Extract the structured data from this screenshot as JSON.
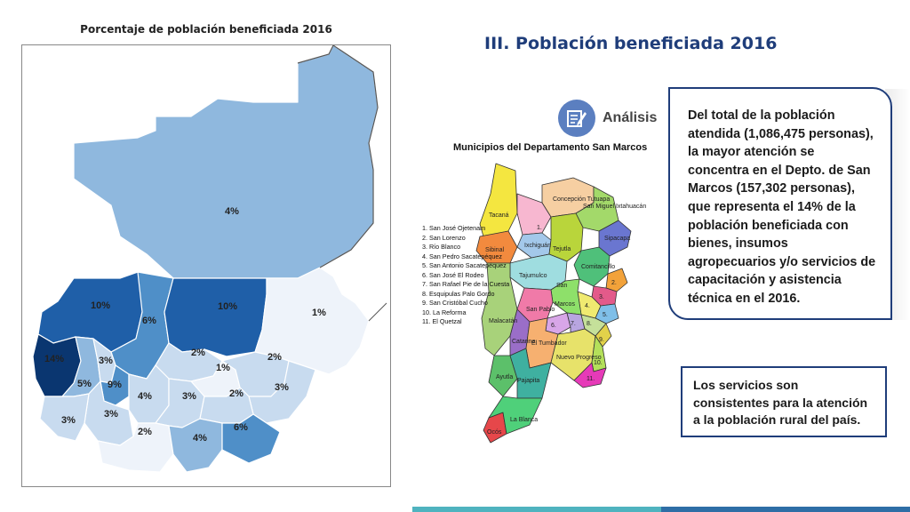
{
  "map": {
    "title": "Porcentaje de población beneficiada 2016",
    "labels": [
      {
        "id": "peten",
        "text": "4%"
      },
      {
        "id": "huehue",
        "text": "10%"
      },
      {
        "id": "quiche",
        "text": "6%"
      },
      {
        "id": "altaverapaz",
        "text": "10%"
      },
      {
        "id": "izabal",
        "text": "1%"
      },
      {
        "id": "sanmarcos",
        "text": "14%"
      },
      {
        "id": "quetzaltenango",
        "text": "5%"
      },
      {
        "id": "totonicapan",
        "text": "3%"
      },
      {
        "id": "solola",
        "text": "9%"
      },
      {
        "id": "bajaverapaz",
        "text": "2%"
      },
      {
        "id": "elprogreso",
        "text": "1%"
      },
      {
        "id": "zacapa",
        "text": "2%"
      },
      {
        "id": "chiquimula",
        "text": "3%"
      },
      {
        "id": "chimaltenango",
        "text": "4%"
      },
      {
        "id": "guatemala",
        "text": "3%"
      },
      {
        "id": "jalapa",
        "text": "2%"
      },
      {
        "id": "suchitepequez",
        "text": "3%"
      },
      {
        "id": "retalhuleu",
        "text": "3%"
      },
      {
        "id": "escuintla",
        "text": "2%"
      },
      {
        "id": "santarosa",
        "text": "4%"
      },
      {
        "id": "jutiapa",
        "text": "6%"
      }
    ],
    "colors": {
      "lightest": "#eef3fa",
      "light": "#c8dbef",
      "mid": "#8fb8de",
      "midDark": "#4f8fc8",
      "dark": "#1f5fa8",
      "darkest": "#0a3670"
    }
  },
  "slide": {
    "title": "III. Población beneficiada 2016",
    "analysis_label": "Análisis"
  },
  "municipios": {
    "title": "Municipios del Departamento San Marcos",
    "list": [
      "1. San José Ojetenam",
      "2. San Lorenzo",
      "3. Río Blanco",
      "4. San Pedro Sacatepéquez",
      "5. San Antonio Sacatepéquez",
      "6. San José El Rodeo",
      "7. San Rafael Pie de la Cuesta",
      "8. Esquipulas Palo Gordo",
      "9. San Cristóbal Cucho",
      "10. La Reforma",
      "11. El Quetzal"
    ],
    "names": {
      "tacana": "Tacaná",
      "concepcion": "Concepción Tutuapa",
      "sanmiguel": "San Miguel Ixtahuacán",
      "sibinal": "Sibinal",
      "tectitan": "Ixchiguán",
      "tejutla": "Tejutla",
      "sipacapa": "Sipacapa",
      "tajumulco": "Tajumulco",
      "comitancillo": "Comitancillo",
      "san": "San",
      "marcos": "Marcos",
      "sanpablo": "San Pablo",
      "malacatan": "Malacatán",
      "catarina": "Catarina",
      "eltumbador": "El Tumbador",
      "nuevoprogreso": "Nuevo Progreso",
      "ayutla": "Ayutla",
      "pajapita": "Pajapita",
      "ocos": "Ocós",
      "lablanca": "La Blanca"
    },
    "numbers": [
      "1.",
      "2.",
      "3.",
      "4.",
      "5.",
      "6.",
      "7.",
      "8.",
      "9.",
      "10.",
      "11."
    ]
  },
  "boxes": {
    "main_text": "Del total de la población atendida (1,086,475 personas), la mayor atención se concentra en el Depto. de San Marcos (157,302 personas),  que representa el 14% de la población beneficiada con bienes, insumos agropecuarios y/o servicios de capacitación y asistencia técnica en el 2016.",
    "note_text": "Los servicios son consistentes para la atención a la población rural del país."
  }
}
